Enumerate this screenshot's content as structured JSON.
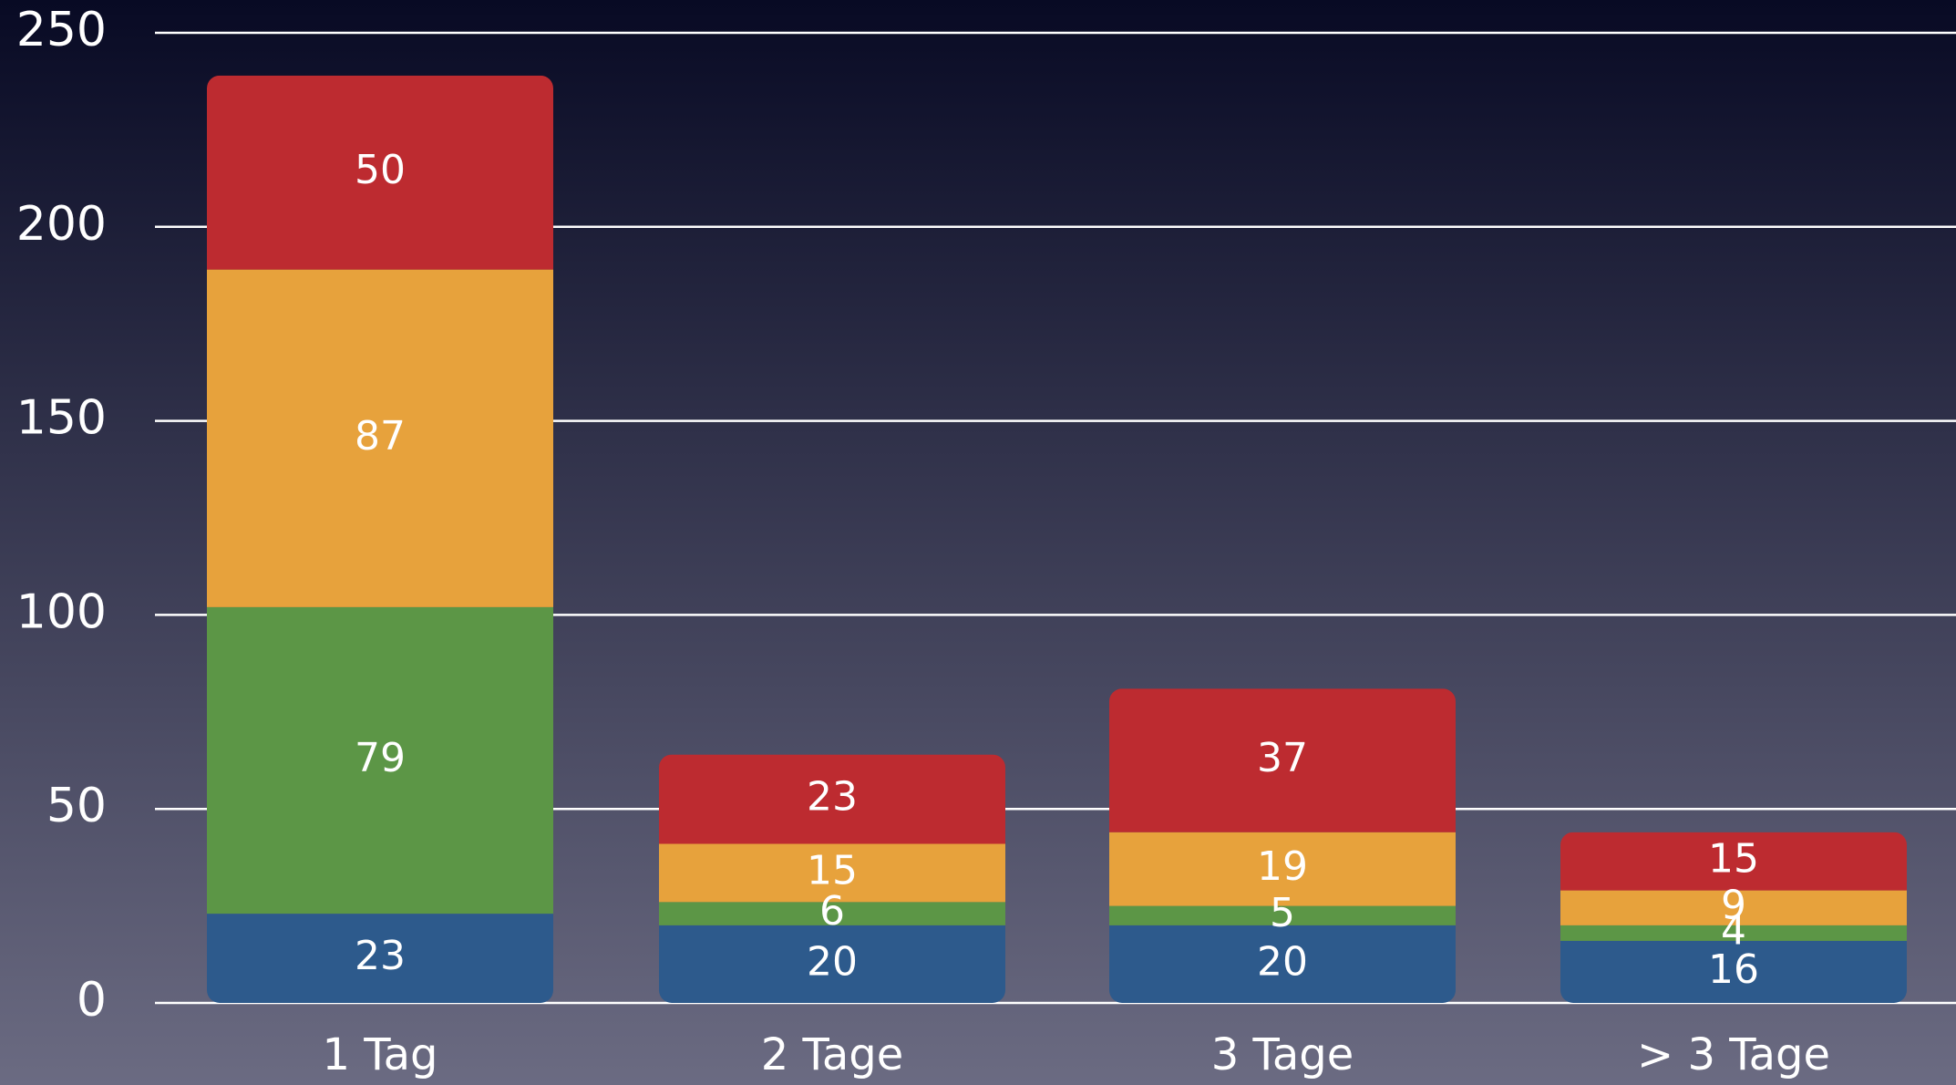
{
  "chart_data": {
    "type": "stacked-bar",
    "categories": [
      "1 Tag",
      "2 Tage",
      "3 Tage",
      "> 3 Tage"
    ],
    "series": [
      {
        "color": "#2d5a8c",
        "values": [
          23,
          20,
          20,
          16
        ]
      },
      {
        "color": "#5c9646",
        "values": [
          79,
          6,
          5,
          4
        ]
      },
      {
        "color": "#e7a23c",
        "values": [
          87,
          15,
          19,
          9
        ]
      },
      {
        "color": "#bd2b30",
        "values": [
          50,
          23,
          37,
          15
        ]
      }
    ],
    "ylim": [
      0,
      250
    ],
    "yticks": [
      0,
      50,
      100,
      150,
      200,
      250
    ],
    "grid": true
  }
}
